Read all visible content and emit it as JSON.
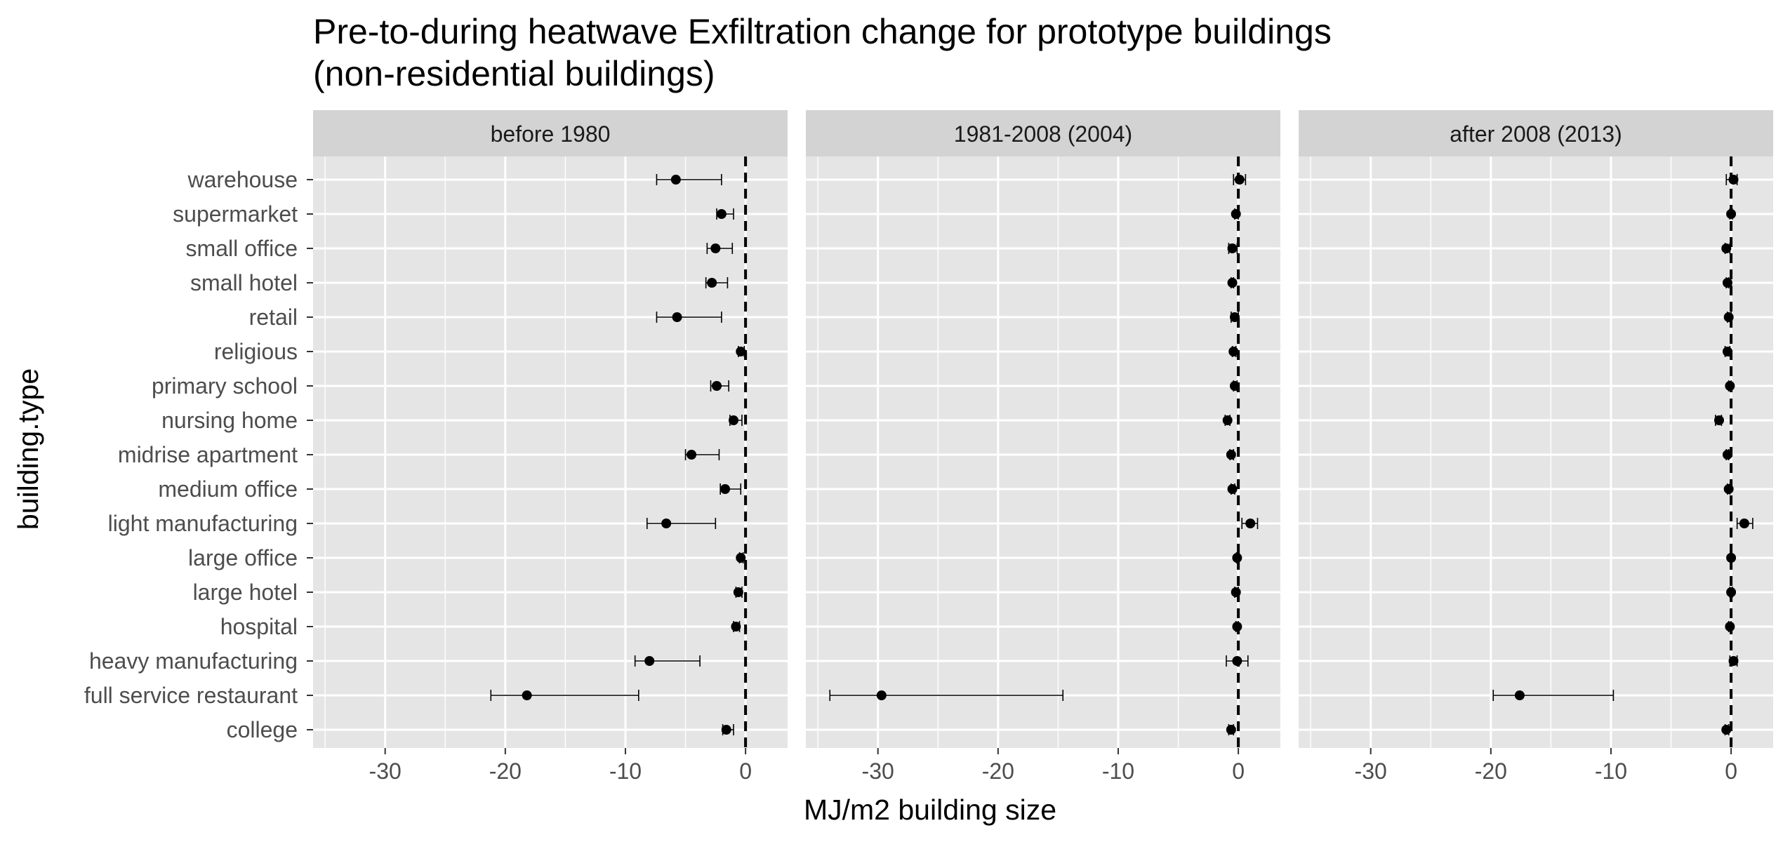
{
  "chart_data": {
    "type": "scatter",
    "title_lines": [
      "Pre-to-during heatwave Exfiltration change for prototype buildings",
      "(non-residential buildings)"
    ],
    "xlabel": "MJ/m2 building size",
    "ylabel": "building.type",
    "xlim": [
      -36,
      3.5
    ],
    "x_ticks": [
      -30,
      -20,
      -10,
      0
    ],
    "x_tick_labels": [
      "-30",
      "-20",
      "-10",
      "0"
    ],
    "reference_line_x": 0,
    "grid": true,
    "categories": [
      "warehouse",
      "supermarket",
      "small office",
      "small hotel",
      "retail",
      "religious",
      "primary school",
      "nursing home",
      "midrise apartment",
      "medium office",
      "light manufacturing",
      "large office",
      "large hotel",
      "hospital",
      "heavy manufacturing",
      "full service restaurant",
      "college"
    ],
    "panels": [
      {
        "label": "before 1980",
        "points": [
          {
            "value": -5.8,
            "low": -7.4,
            "high": -2.0
          },
          {
            "value": -2.0,
            "low": -2.4,
            "high": -1.0
          },
          {
            "value": -2.5,
            "low": -3.2,
            "high": -1.1
          },
          {
            "value": -2.8,
            "low": -3.3,
            "high": -1.5
          },
          {
            "value": -5.7,
            "low": -7.4,
            "high": -2.0
          },
          {
            "value": -0.4,
            "low": -0.6,
            "high": -0.1
          },
          {
            "value": -2.4,
            "low": -2.9,
            "high": -1.4
          },
          {
            "value": -1.0,
            "low": -1.3,
            "high": -0.3
          },
          {
            "value": -4.5,
            "low": -5.0,
            "high": -2.2
          },
          {
            "value": -1.7,
            "low": -2.1,
            "high": -0.4
          },
          {
            "value": -6.6,
            "low": -8.2,
            "high": -2.5
          },
          {
            "value": -0.4,
            "low": -0.5,
            "high": -0.2
          },
          {
            "value": -0.6,
            "low": -0.8,
            "high": -0.3
          },
          {
            "value": -0.8,
            "low": -1.0,
            "high": -0.5
          },
          {
            "value": -8.0,
            "low": -9.2,
            "high": -3.8
          },
          {
            "value": -18.2,
            "low": -21.2,
            "high": -8.9
          },
          {
            "value": -1.6,
            "low": -1.9,
            "high": -1.0
          }
        ]
      },
      {
        "label": "1981-2008 (2004)",
        "points": [
          {
            "value": 0.1,
            "low": -0.4,
            "high": 0.6
          },
          {
            "value": -0.2,
            "low": -0.3,
            "high": 0.0
          },
          {
            "value": -0.5,
            "low": -0.8,
            "high": -0.1
          },
          {
            "value": -0.5,
            "low": -0.6,
            "high": -0.4
          },
          {
            "value": -0.3,
            "low": -0.6,
            "high": 0.0
          },
          {
            "value": -0.4,
            "low": -0.5,
            "high": -0.2
          },
          {
            "value": -0.3,
            "low": -0.4,
            "high": -0.1
          },
          {
            "value": -0.9,
            "low": -1.1,
            "high": -0.7
          },
          {
            "value": -0.6,
            "low": -0.7,
            "high": -0.4
          },
          {
            "value": -0.5,
            "low": -0.6,
            "high": -0.3
          },
          {
            "value": 1.0,
            "low": 0.3,
            "high": 1.6
          },
          {
            "value": -0.1,
            "low": -0.15,
            "high": -0.05
          },
          {
            "value": -0.2,
            "low": -0.3,
            "high": 0.0
          },
          {
            "value": -0.1,
            "low": -0.2,
            "high": 0.0
          },
          {
            "value": -0.1,
            "low": -1.0,
            "high": 0.8
          },
          {
            "value": -29.7,
            "low": -34.0,
            "high": -14.6
          },
          {
            "value": -0.6,
            "low": -0.8,
            "high": -0.4
          }
        ]
      },
      {
        "label": "after 2008 (2013)",
        "points": [
          {
            "value": 0.2,
            "low": -0.4,
            "high": 0.5
          },
          {
            "value": 0.0,
            "low": -0.1,
            "high": 0.1
          },
          {
            "value": -0.4,
            "low": -0.5,
            "high": -0.1
          },
          {
            "value": -0.3,
            "low": -0.4,
            "high": -0.2
          },
          {
            "value": -0.2,
            "low": -0.3,
            "high": 0.0
          },
          {
            "value": -0.3,
            "low": -0.5,
            "high": -0.1
          },
          {
            "value": -0.1,
            "low": -0.2,
            "high": 0.0
          },
          {
            "value": -1.0,
            "low": -1.3,
            "high": -0.8
          },
          {
            "value": -0.3,
            "low": -0.4,
            "high": -0.2
          },
          {
            "value": -0.2,
            "low": -0.3,
            "high": -0.1
          },
          {
            "value": 1.1,
            "low": 0.5,
            "high": 1.8
          },
          {
            "value": 0.0,
            "low": -0.05,
            "high": 0.05
          },
          {
            "value": 0.0,
            "low": -0.1,
            "high": 0.1
          },
          {
            "value": -0.1,
            "low": -0.2,
            "high": 0.0
          },
          {
            "value": 0.2,
            "low": -0.1,
            "high": 0.5
          },
          {
            "value": -17.6,
            "low": -19.8,
            "high": -9.8
          },
          {
            "value": -0.4,
            "low": -0.5,
            "high": -0.2
          }
        ]
      }
    ],
    "colors": {
      "panel_background": "#e5e5e5",
      "grid": "#ffffff",
      "strip_background": "#d3d3d3",
      "points": "#000000"
    }
  }
}
